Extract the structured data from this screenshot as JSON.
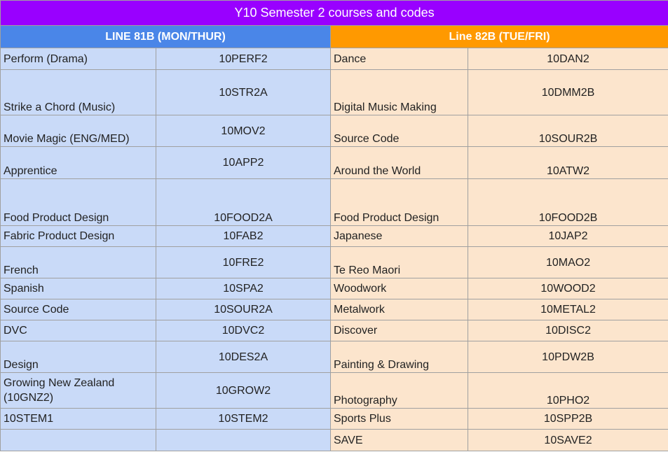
{
  "title": "Y10 Semester 2 courses and codes",
  "headers": [
    "LINE 81B (MON/THUR)",
    "Line 82B (TUE/FRI)"
  ],
  "table": {
    "rows": [
      [
        "Perform (Drama)",
        "10PERF2",
        "Dance",
        "10DAN2"
      ],
      [
        "Strike a Chord (Music)",
        "10STR2A",
        "Digital Music Making",
        "10DMM2B"
      ],
      [
        "Movie Magic (ENG/MED)",
        "10MOV2",
        "Source Code",
        "10SOUR2B"
      ],
      [
        "Apprentice",
        "10APP2",
        "Around the World",
        "10ATW2"
      ],
      [
        "Food Product Design",
        "10FOOD2A",
        "Food Product Design",
        "10FOOD2B"
      ],
      [
        "Fabric Product Design",
        "10FAB2",
        "Japanese",
        "10JAP2"
      ],
      [
        "French",
        "10FRE2",
        "Te Reo Maori",
        "10MAO2"
      ],
      [
        "Spanish",
        "10SPA2",
        "Woodwork",
        "10WOOD2"
      ],
      [
        "Source Code",
        "10SOUR2A",
        "Metalwork",
        "10METAL2"
      ],
      [
        "DVC",
        "10DVC2",
        "Discover",
        "10DISC2"
      ],
      [
        "Design",
        "10DES2A",
        "Painting & Drawing",
        "10PDW2B"
      ],
      [
        "Growing New Zealand (10GNZ2)",
        "10GROW2",
        "Photography",
        "10PHO2"
      ],
      [
        "10STEM1",
        "10STEM2",
        "Sports Plus",
        "10SPP2B"
      ],
      [
        null,
        null,
        "SAVE",
        "10SAVE2"
      ]
    ]
  }
}
